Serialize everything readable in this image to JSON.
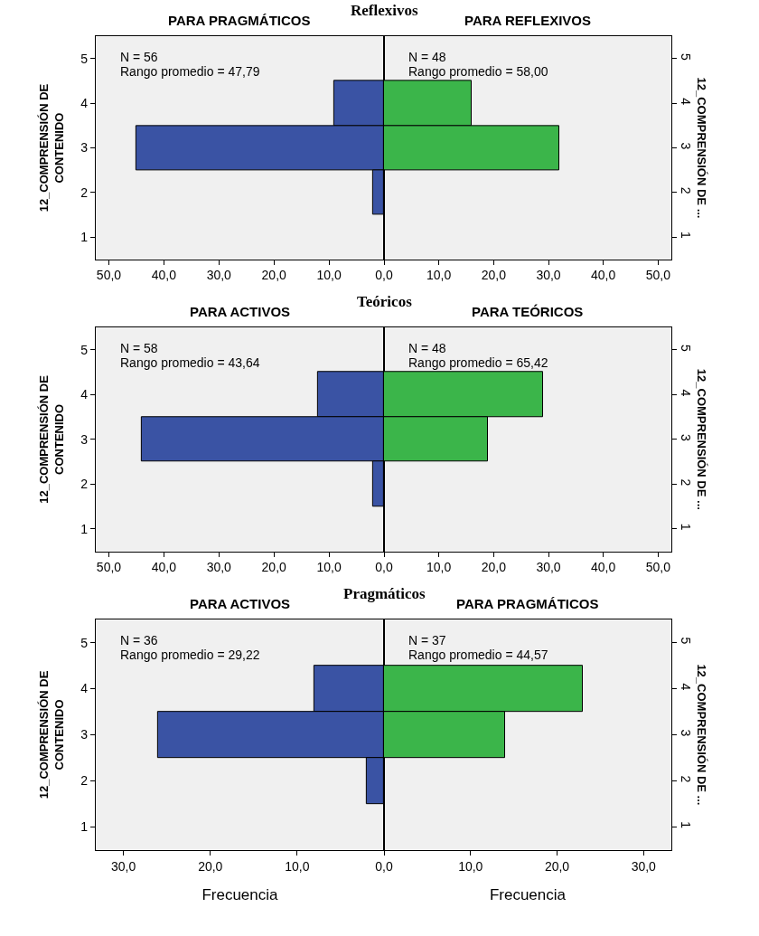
{
  "chart_data": [
    {
      "type": "bar",
      "orientation": "horizontal",
      "title": "PARA PRAGMÁTICOS",
      "categories": [
        "5",
        "4",
        "3",
        "2",
        "1"
      ],
      "values": [
        null,
        9,
        45,
        2,
        null
      ],
      "color": "#3a53a4",
      "xlim": [
        52.4,
        0
      ],
      "xticks": [
        {
          "value": 50,
          "label": "50,0"
        },
        {
          "value": 40,
          "label": "40,0"
        },
        {
          "value": 30,
          "label": "30,0"
        },
        {
          "value": 20,
          "label": "20,0"
        },
        {
          "value": 10,
          "label": "10,0"
        }
      ],
      "ylabel": "12_COMPRENSIÓN DE\nCONTENIDO",
      "annotations": [
        "Reflexivos",
        "N = 56",
        "Rango promedio = 47,79"
      ]
    },
    {
      "type": "bar",
      "orientation": "horizontal",
      "title": "PARA REFLEXIVOS",
      "categories": [
        "5",
        "4",
        "3",
        "2",
        "1"
      ],
      "values": [
        null,
        16,
        32,
        null,
        null
      ],
      "color": "#3bb54a",
      "xlim": [
        0,
        52.4
      ],
      "xticks": [
        {
          "value": 0,
          "label": "0,0"
        },
        {
          "value": 10,
          "label": "10,0"
        },
        {
          "value": 20,
          "label": "20,0"
        },
        {
          "value": 30,
          "label": "30,0"
        },
        {
          "value": 40,
          "label": "40,0"
        },
        {
          "value": 50,
          "label": "50,0"
        }
      ],
      "ylabel": "12_COMPRENSIÓN DE ...",
      "annotations": [
        "N = 48",
        "Rango promedio = 58,00"
      ]
    },
    {
      "type": "bar",
      "orientation": "horizontal",
      "title": "PARA ACTIVOS",
      "categories": [
        "5",
        "4",
        "3",
        "2",
        "1"
      ],
      "values": [
        null,
        12,
        44,
        2,
        null
      ],
      "color": "#3a53a4",
      "xlim": [
        52.4,
        0
      ],
      "xticks": [
        {
          "value": 50,
          "label": "50,0"
        },
        {
          "value": 40,
          "label": "40,0"
        },
        {
          "value": 30,
          "label": "30,0"
        },
        {
          "value": 20,
          "label": "20,0"
        },
        {
          "value": 10,
          "label": "10,0"
        }
      ],
      "ylabel": "12_COMPRENSIÓN DE\nCONTENIDO",
      "annotations": [
        "Teóricos",
        "N = 58",
        "Rango promedio = 43,64"
      ]
    },
    {
      "type": "bar",
      "orientation": "horizontal",
      "title": "PARA TEÓRICOS",
      "categories": [
        "5",
        "4",
        "3",
        "2",
        "1"
      ],
      "values": [
        null,
        29,
        19,
        null,
        null
      ],
      "color": "#3bb54a",
      "xlim": [
        0,
        52.4
      ],
      "xticks": [
        {
          "value": 0,
          "label": "0,0"
        },
        {
          "value": 10,
          "label": "10,0"
        },
        {
          "value": 20,
          "label": "20,0"
        },
        {
          "value": 30,
          "label": "30,0"
        },
        {
          "value": 40,
          "label": "40,0"
        },
        {
          "value": 50,
          "label": "50,0"
        }
      ],
      "ylabel": "12_COMPRENSIÓN DE ...",
      "annotations": [
        "N = 48",
        "Rango promedio = 65,42"
      ]
    },
    {
      "type": "bar",
      "orientation": "horizontal",
      "title": "PARA ACTIVOS",
      "categories": [
        "5",
        "4",
        "3",
        "2",
        "1"
      ],
      "values": [
        null,
        8,
        26,
        2,
        null
      ],
      "color": "#3a53a4",
      "xlim": [
        33.2,
        0
      ],
      "xticks": [
        {
          "value": 30,
          "label": "30,0"
        },
        {
          "value": 20,
          "label": "20,0"
        },
        {
          "value": 10,
          "label": "10,0"
        }
      ],
      "ylabel": "12_COMPRENSIÓN DE\nCONTENIDO",
      "xlabel": "Frecuencia",
      "annotations": [
        "Pragmáticos",
        "N = 36",
        "Rango promedio = 29,22"
      ]
    },
    {
      "type": "bar",
      "orientation": "horizontal",
      "title": "PARA PRAGMÁTICOS",
      "categories": [
        "5",
        "4",
        "3",
        "2",
        "1"
      ],
      "values": [
        null,
        23,
        14,
        null,
        null
      ],
      "color": "#3bb54a",
      "xlim": [
        0,
        33.2
      ],
      "xticks": [
        {
          "value": 0,
          "label": "0,0"
        },
        {
          "value": 10,
          "label": "10,0"
        },
        {
          "value": 20,
          "label": "20,0"
        },
        {
          "value": 30,
          "label": "30,0"
        }
      ],
      "ylabel": "12_COMPRENSIÓN DE ...",
      "xlabel": "Frecuencia",
      "annotations": [
        "N = 37",
        "Rango promedio = 44,57"
      ]
    }
  ]
}
